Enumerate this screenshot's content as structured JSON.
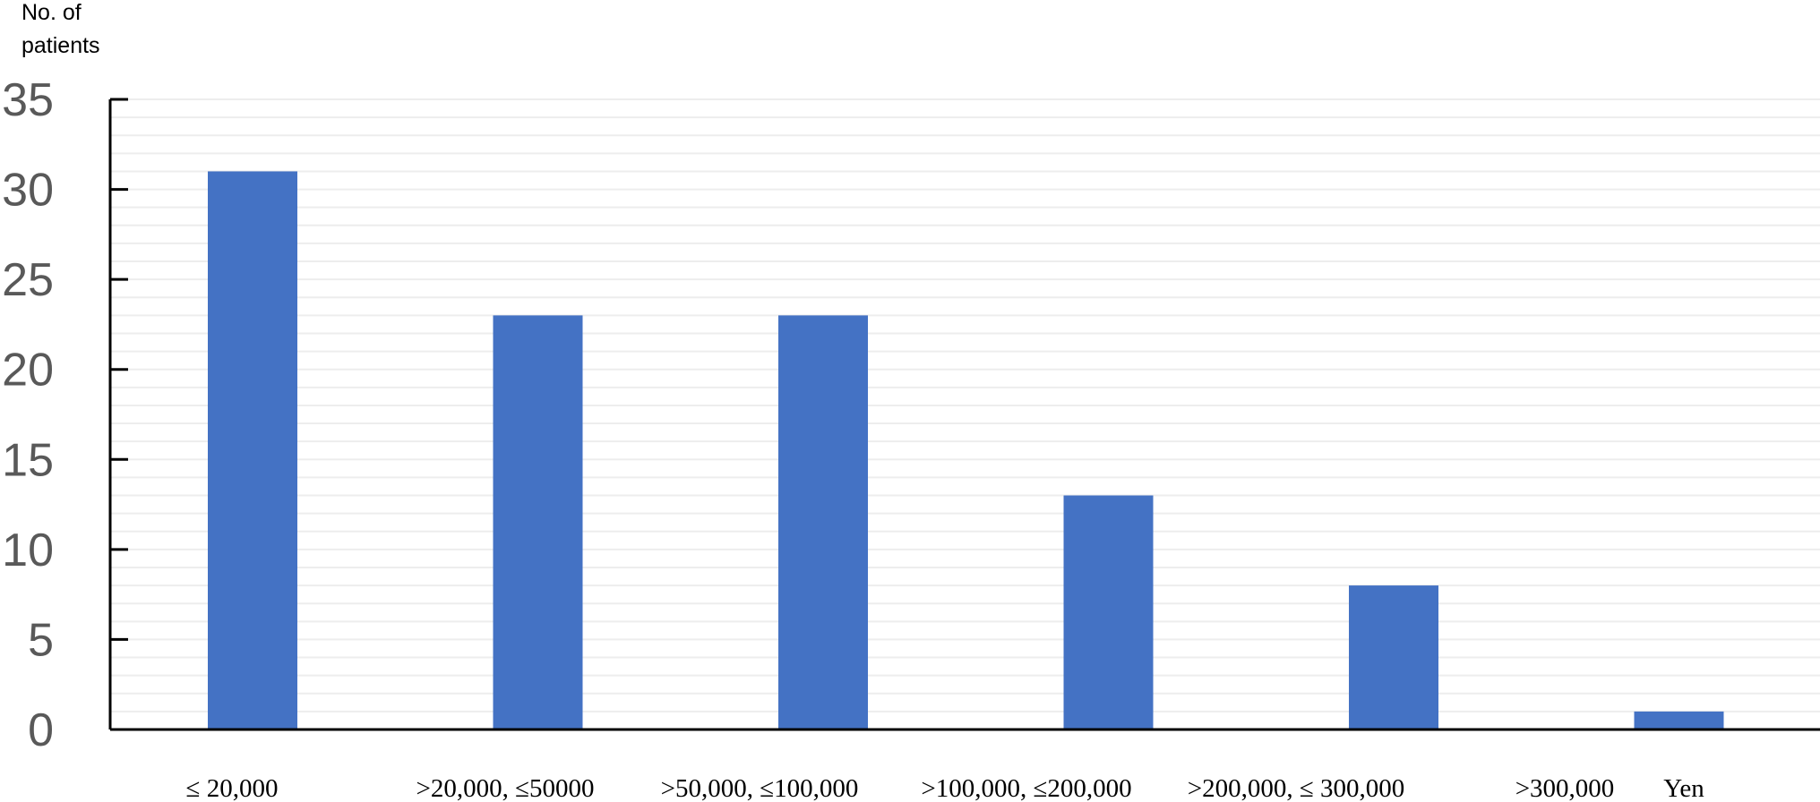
{
  "chart_data": {
    "type": "bar",
    "ylabel_lines": [
      "No. of",
      "patients"
    ],
    "xunit": "Yen",
    "categories": [
      "≤ 20,000",
      ">20,000, ≤50000",
      ">50,000, ≤100,000",
      ">100,000, ≤200,000",
      ">200,000, ≤ 300,000",
      ">300,000"
    ],
    "values": [
      31,
      23,
      23,
      13,
      8,
      1
    ],
    "ylim": [
      0,
      35
    ],
    "yticks": [
      0,
      5,
      10,
      15,
      20,
      25,
      30,
      35
    ],
    "grid": true,
    "bar_color": "#4472C4",
    "gridline_color": "#EDEDED",
    "axis_color": "#000000"
  }
}
